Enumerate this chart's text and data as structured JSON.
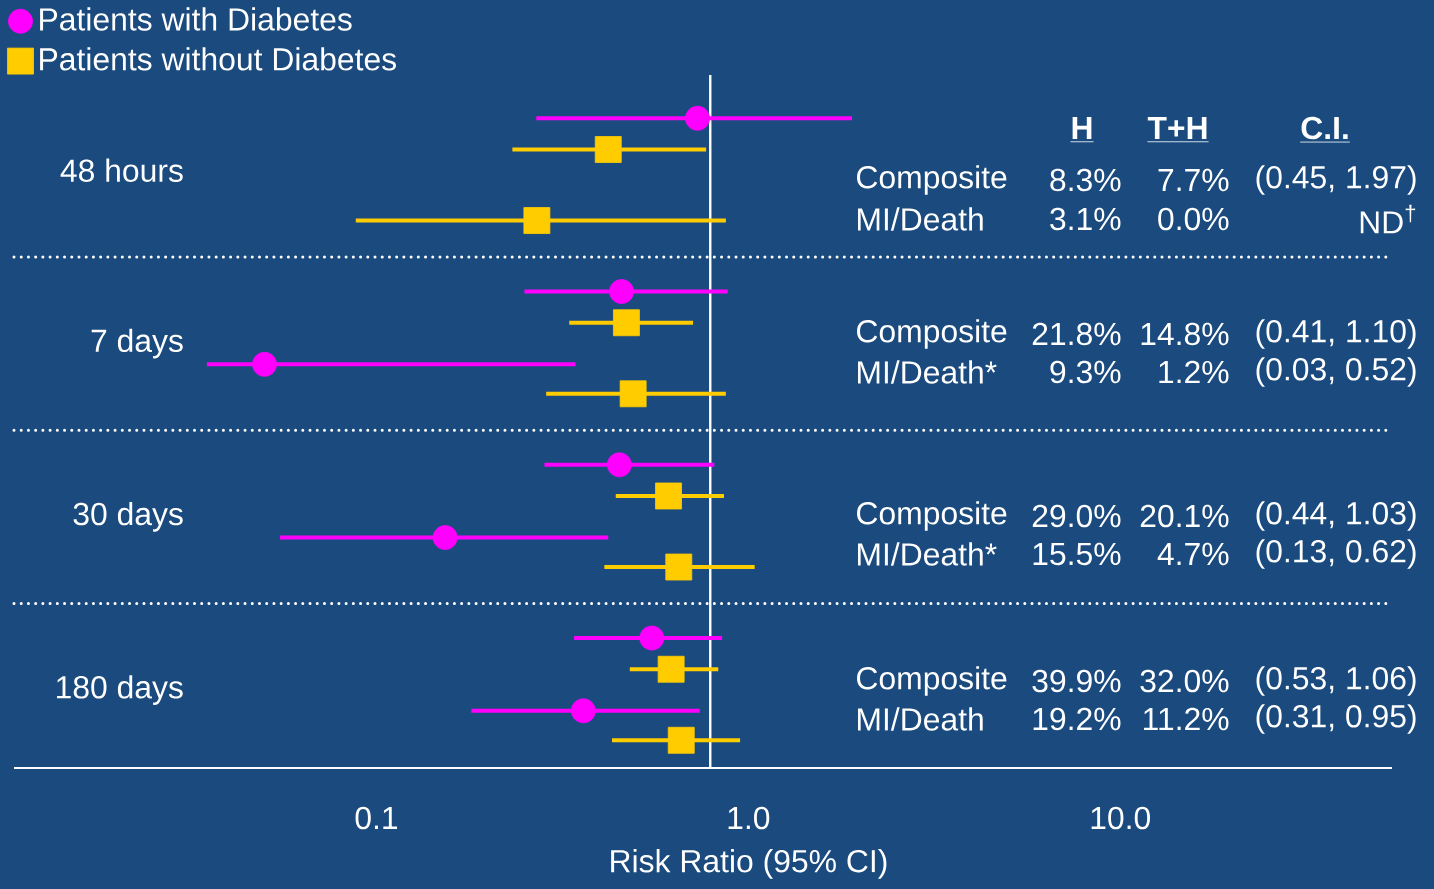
{
  "chart_data": {
    "type": "scatter",
    "orientation": "horizontal",
    "log": "x",
    "legend": "top left",
    "categories": [
      "48 hours",
      "7 days",
      "30 days",
      "180 days"
    ],
    "series": [
      {
        "name": "Patients with Diabetes",
        "color": "#ff00ff",
        "marker": "circle",
        "values": [
          0.73,
          0.456,
          0.45,
          0.55
        ],
        "errors": [
          [
            0.269,
            1.9
          ],
          [
            0.25,
            0.88
          ],
          [
            0.283,
            0.81
          ],
          [
            0.34,
            0.85
          ]
        ]
      },
      {
        "name": "Patients without Diabetes",
        "color": "#ffcc00",
        "marker": "square",
        "values": [
          0.42,
          0.47,
          0.61,
          0.62
        ],
        "errors": [
          [
            0.232,
            0.77
          ],
          [
            0.33,
            0.71
          ],
          [
            0.44,
            0.86
          ],
          [
            0.48,
            0.83
          ]
        ]
      },
      {
        "color": "#ff00ff",
        "marker": "circle",
        "values": [
          null,
          0.05,
          0.153,
          0.36
        ],
        "errors": [
          null,
          [
            0.035,
            0.343
          ],
          [
            0.055,
            0.42
          ],
          [
            0.18,
            0.74
          ]
        ]
      },
      {
        "color": "#ffcc00",
        "marker": "square",
        "values": [
          0.27,
          0.49,
          0.65,
          0.66
        ],
        "errors": [
          [
            0.088,
            0.87
          ],
          [
            0.286,
            0.87
          ],
          [
            0.41,
            1.04
          ],
          [
            0.43,
            0.95
          ]
        ]
      }
    ],
    "xlabel": "Risk Ratio (95% CI)",
    "xlim": [
      0.0106,
      53.8
    ],
    "xticks": [
      {
        "value": 0.1,
        "label": "0.1"
      },
      {
        "value": 1,
        "label": "1.0"
      },
      {
        "value": 10,
        "label": "10.0"
      }
    ],
    "ref_lines": [
      {
        "axis": "x",
        "value": 0.79,
        "color": "#ffffff"
      }
    ],
    "annotations": [
      "H",
      "T+H",
      "C.I.",
      "Composite",
      "8.3%",
      "7.7%",
      "(0.45, 1.97)",
      "MI/Death",
      "3.1%",
      "0.0%",
      "ND$^{†}$",
      "Composite",
      "21.8%",
      "14.8%",
      "(0.41, 1.10)",
      "MI/Death*",
      "9.3%",
      "1.2%",
      "(0.03, 0.52)",
      "Composite",
      "29.0%",
      "20.1%",
      "(0.44, 1.03)",
      "MI/Death*",
      "15.5%",
      "4.7%",
      "(0.13, 0.62)",
      "Composite",
      "39.9%",
      "32.0%",
      "(0.53, 1.06)",
      "MI/Death",
      "19.2%",
      "11.2%",
      "(0.31, 0.95)"
    ]
  }
}
